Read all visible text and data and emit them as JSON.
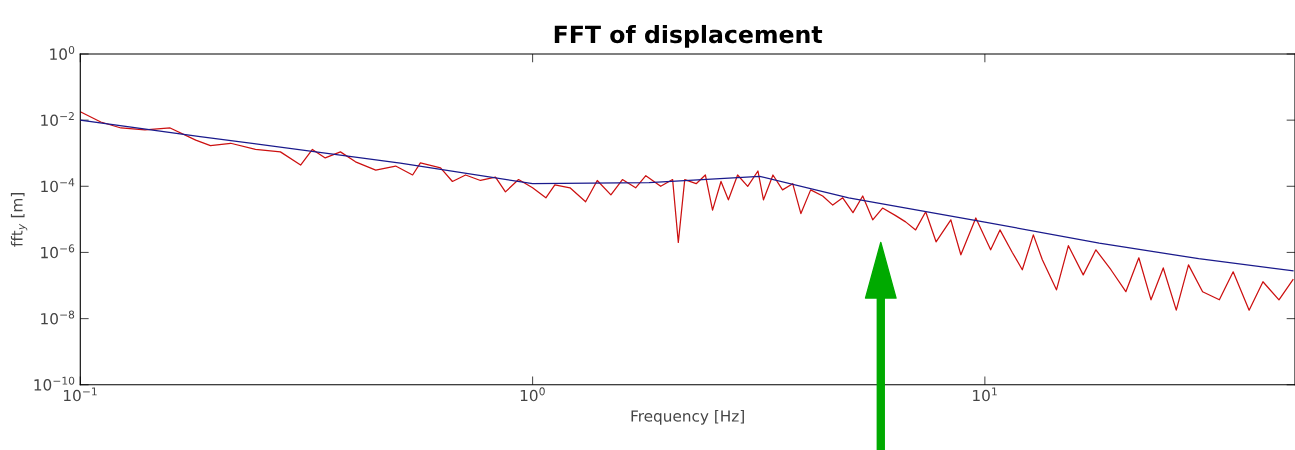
{
  "chart_data": {
    "type": "line",
    "title": "FFT of displacement",
    "xlabel": "Frequency [Hz]",
    "ylabel": "fft$_{y}$ [m]",
    "log": "xy",
    "grid": false,
    "marker": "none",
    "line_style": "solid",
    "xlim": [
      0.1,
      48.5
    ],
    "ylim": [
      1e-10,
      1
    ],
    "xticks": [
      {
        "value": 0.1,
        "label": "10$^{−1}$"
      },
      {
        "value": 1,
        "label": "10$^{0}$"
      },
      {
        "value": 10,
        "label": "10$^{1}$"
      }
    ],
    "yticks": [
      {
        "value": 1e-10,
        "label": "10$^{−10}$"
      },
      {
        "value": 1e-08,
        "label": "10$^{−8}$"
      },
      {
        "value": 1e-06,
        "label": "10$^{−6}$"
      },
      {
        "value": 0.0001,
        "label": "10$^{−4}$"
      },
      {
        "value": 0.01,
        "label": "10$^{−2}$"
      },
      {
        "value": 1,
        "label": "10$^{0}$"
      }
    ],
    "series": [
      {
        "color": "#cc1010",
        "x": [
          0.1,
          0.111,
          0.123,
          0.139,
          0.158,
          0.18,
          0.194,
          0.215,
          0.244,
          0.277,
          0.307,
          0.326,
          0.348,
          0.376,
          0.406,
          0.45,
          0.498,
          0.543,
          0.565,
          0.626,
          0.665,
          0.711,
          0.767,
          0.828,
          0.871,
          0.931,
          1.0,
          1.07,
          1.12,
          1.21,
          1.31,
          1.39,
          1.49,
          1.58,
          1.69,
          1.78,
          1.92,
          2.04,
          2.1,
          2.17,
          2.3,
          2.41,
          2.5,
          2.61,
          2.71,
          2.84,
          2.99,
          3.15,
          3.24,
          3.4,
          3.57,
          3.76,
          3.92,
          4.12,
          4.38,
          4.61,
          4.85,
          5.11,
          5.37,
          5.65,
          5.94,
          6.35,
          6.68,
          7.03,
          7.4,
          7.8,
          8.41,
          8.85,
          9.55,
          10.3,
          10.8,
          11.5,
          12.1,
          12.8,
          13.4,
          14.4,
          15.3,
          16.5,
          17.6,
          19.0,
          20.5,
          21.9,
          23.3,
          24.8,
          26.5,
          28.2,
          30.3,
          33.0,
          35.4,
          38.4,
          41.2,
          44.7,
          48.0
        ],
        "values": [
          0.018,
          0.0088,
          0.0058,
          0.0051,
          0.0058,
          0.0025,
          0.0017,
          0.002,
          0.0013,
          0.0011,
          0.00044,
          0.0013,
          0.00072,
          0.0011,
          0.00055,
          0.00031,
          0.00041,
          0.00022,
          0.00051,
          0.00036,
          0.00014,
          0.00022,
          0.00015,
          0.00019,
          6.8e-05,
          0.00016,
          9e-05,
          4.5e-05,
          0.00011,
          9e-05,
          3.4e-05,
          0.00015,
          5.5e-05,
          0.00016,
          9e-05,
          0.00021,
          0.0001,
          0.00016,
          2e-06,
          0.00016,
          0.00012,
          0.00022,
          1.9e-05,
          0.00014,
          3.9e-05,
          0.00022,
          0.0001,
          0.00029,
          3.9e-05,
          0.00022,
          7.8e-05,
          0.00012,
          1.5e-05,
          7.8e-05,
          5.1e-05,
          2.7e-05,
          4.5e-05,
          1.6e-05,
          5.1e-05,
          9.7e-06,
          2.2e-05,
          1.3e-05,
          8.4e-06,
          4.8e-06,
          1.7e-05,
          2.1e-06,
          9.7e-06,
          8.5e-07,
          1.1e-05,
          1.2e-06,
          4.8e-06,
          1e-06,
          3e-07,
          3.4e-06,
          6e-07,
          7.4e-08,
          1.6e-06,
          2.1e-07,
          1.2e-06,
          3e-07,
          6.5e-08,
          6.9e-07,
          3.7e-08,
          3.4e-07,
          1.8e-08,
          4.2e-07,
          6.5e-08,
          3.7e-08,
          2.6e-07,
          1.8e-08,
          1.3e-07,
          3.7e-08,
          1.5e-07
        ]
      },
      {
        "color": "#1a1a8c",
        "x": [
          0.1,
          0.184,
          0.51,
          1.0,
          1.81,
          3.18,
          5.0,
          10,
          17.9,
          29.7,
          48.0
        ],
        "values": [
          0.01,
          0.0032,
          0.0005,
          0.00012,
          0.00013,
          0.0002,
          4.5e-05,
          8.3e-06,
          1.9e-06,
          6.5e-07,
          2.8e-07
        ]
      }
    ]
  }
}
